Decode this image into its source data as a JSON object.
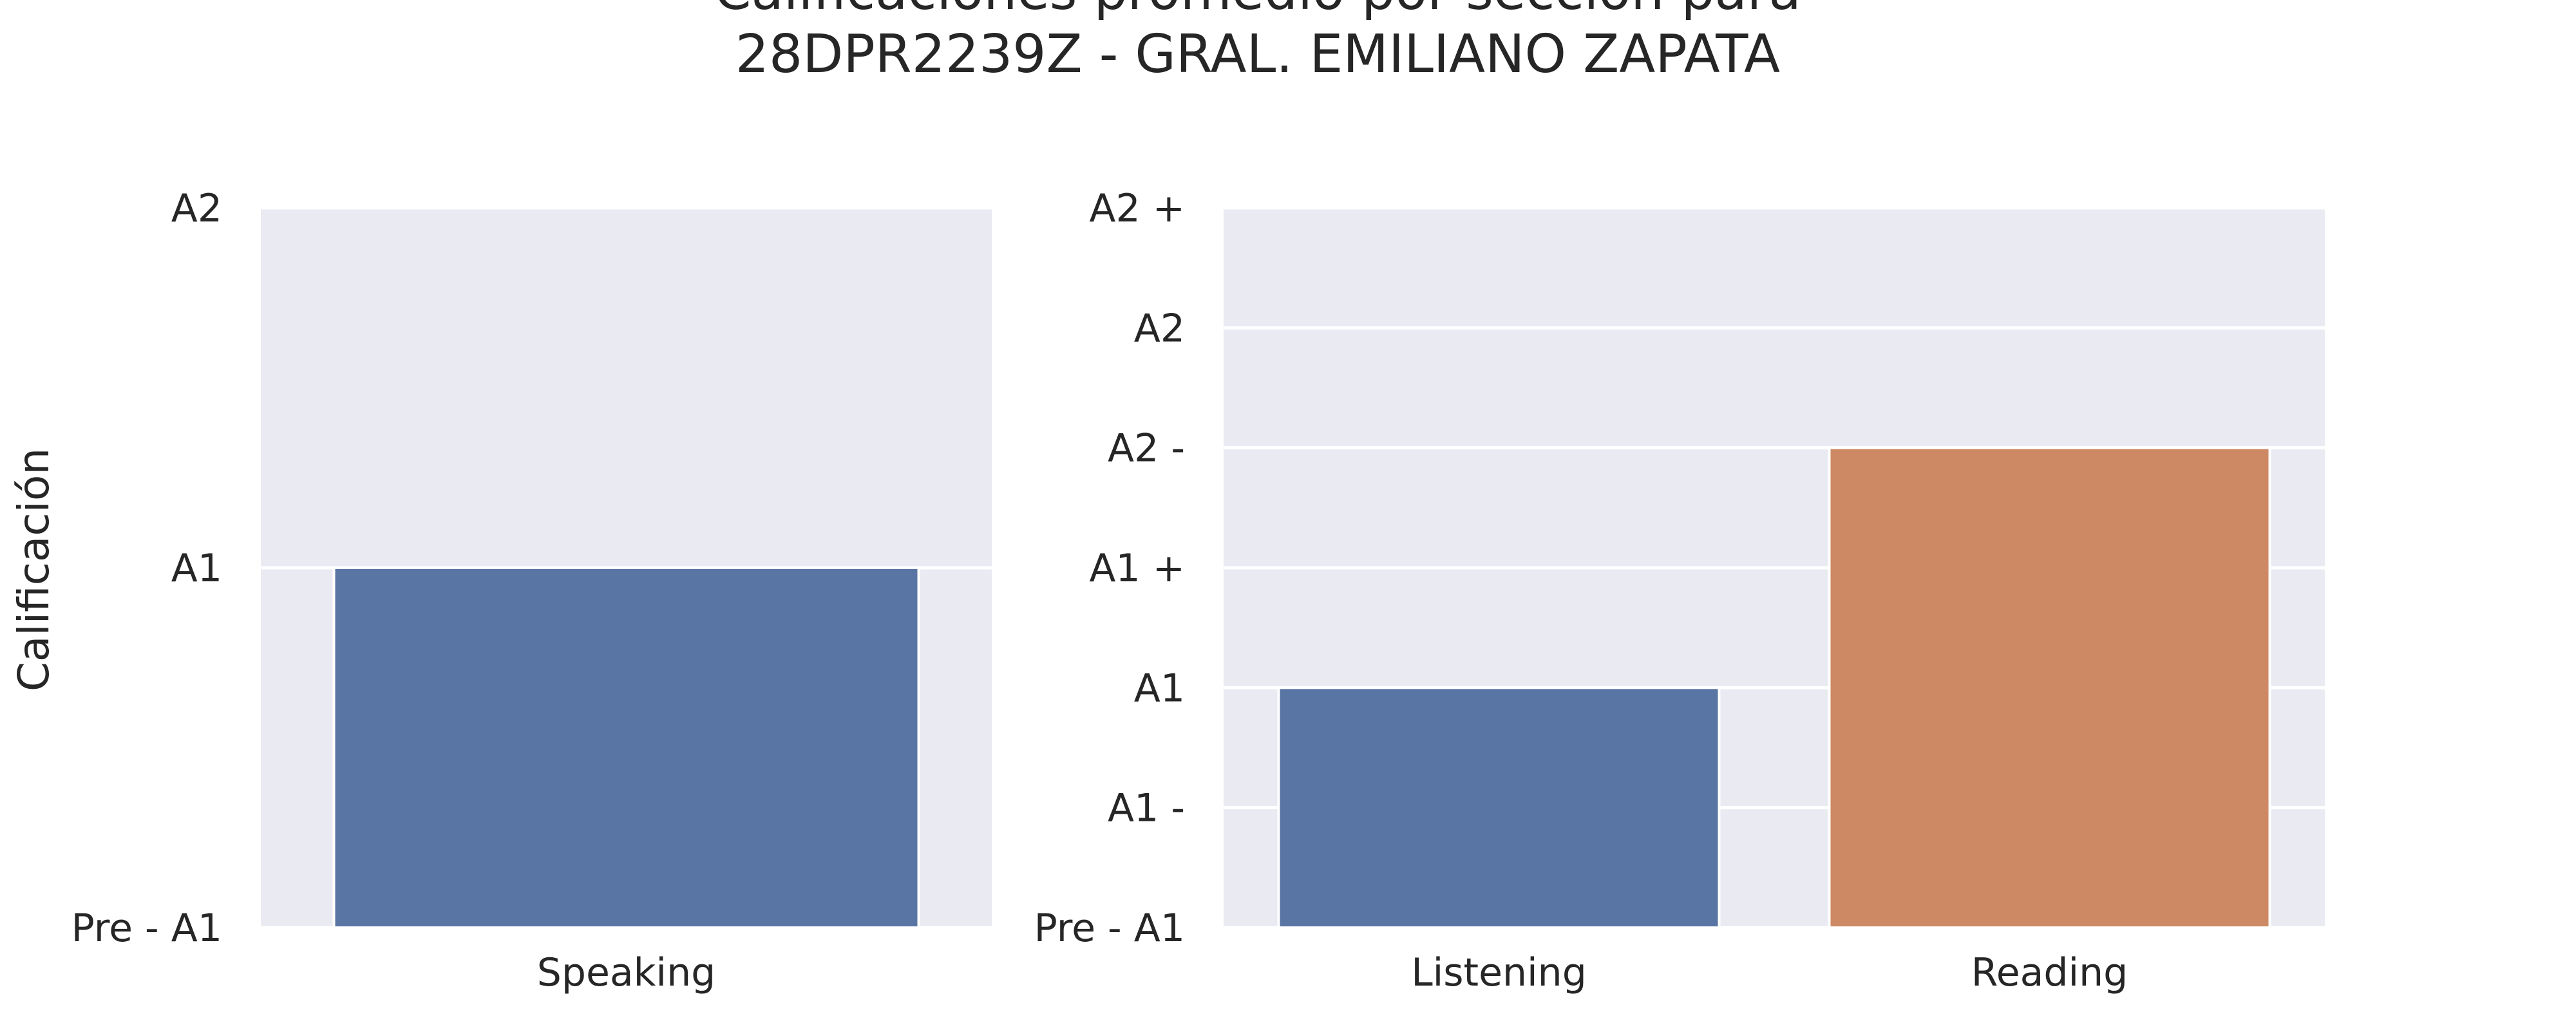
{
  "chart_data": [
    {
      "type": "bar",
      "title": [
        "Calificaciones promedio por sección para",
        "28DPR2239Z - GRAL. EMILIANO ZAPATA"
      ],
      "ylabel": "Calificación",
      "xlabel": "",
      "categories": [
        "Speaking"
      ],
      "values": [
        1
      ],
      "colors": [
        "#5975a4"
      ],
      "y_ticks": [
        {
          "value": 0,
          "label": "Pre - A1"
        },
        {
          "value": 1,
          "label": "A1"
        },
        {
          "value": 2,
          "label": "A2"
        }
      ],
      "ylim": [
        0,
        2
      ],
      "grid": true,
      "background": "#eaeaf2"
    },
    {
      "type": "bar",
      "xlabel": "",
      "categories": [
        "Listening",
        "Reading"
      ],
      "values": [
        2,
        4
      ],
      "colors": [
        "#5975a4",
        "#cc8963"
      ],
      "y_ticks": [
        {
          "value": 0,
          "label": "Pre - A1"
        },
        {
          "value": 1,
          "label": "A1 -"
        },
        {
          "value": 2,
          "label": "A1"
        },
        {
          "value": 3,
          "label": "A1 +"
        },
        {
          "value": 4,
          "label": "A2 -"
        },
        {
          "value": 5,
          "label": "A2"
        },
        {
          "value": 6,
          "label": "A2 +"
        }
      ],
      "ylim": [
        0,
        6
      ],
      "grid": true,
      "background": "#eaeaf2"
    }
  ]
}
